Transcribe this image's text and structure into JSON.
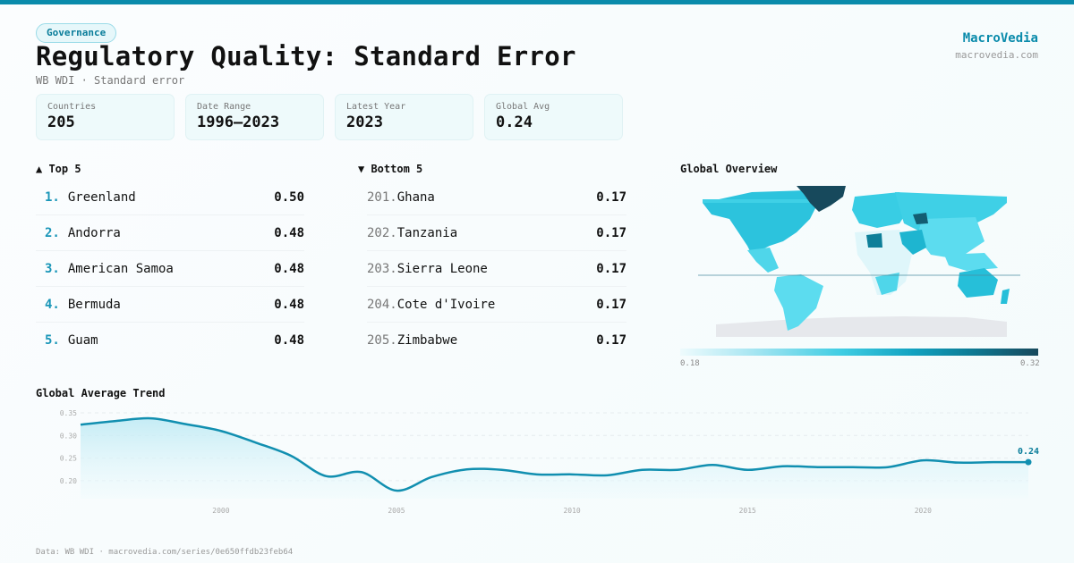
{
  "header": {
    "category_badge": "Governance",
    "title": "Regulatory Quality: Standard Error",
    "subtitle": "WB WDI · Standard error",
    "brand": "MacroVedia",
    "brand_url": "macrovedia.com"
  },
  "stats": [
    {
      "label": "Countries",
      "value": "205"
    },
    {
      "label": "Date Range",
      "value": "1996–2023"
    },
    {
      "label": "Latest Year",
      "value": "2023"
    },
    {
      "label": "Global Avg",
      "value": "0.24"
    }
  ],
  "top5": {
    "title": "▲ Top 5",
    "items": [
      {
        "rank": "1.",
        "country": "Greenland",
        "value": "0.50"
      },
      {
        "rank": "2.",
        "country": "Andorra",
        "value": "0.48"
      },
      {
        "rank": "3.",
        "country": "American Samoa",
        "value": "0.48"
      },
      {
        "rank": "4.",
        "country": "Bermuda",
        "value": "0.48"
      },
      {
        "rank": "5.",
        "country": "Guam",
        "value": "0.48"
      }
    ]
  },
  "bottom5": {
    "title": "▼ Bottom 5",
    "items": [
      {
        "rank": "201.",
        "country": "Ghana",
        "value": "0.17"
      },
      {
        "rank": "202.",
        "country": "Tanzania",
        "value": "0.17"
      },
      {
        "rank": "203.",
        "country": "Sierra Leone",
        "value": "0.17"
      },
      {
        "rank": "204.",
        "country": "Cote d'Ivoire",
        "value": "0.17"
      },
      {
        "rank": "205.",
        "country": "Zimbabwe",
        "value": "0.17"
      }
    ]
  },
  "map": {
    "title": "Global Overview",
    "legend_min": "0.18",
    "legend_max": "0.32"
  },
  "trend": {
    "title": "Global Average Trend",
    "last_label": "0.24"
  },
  "footer": "Data: WB WDI · macrovedia.com/series/0e650ffdb23feb64",
  "colors": {
    "accent": "#0a8bab",
    "line": "#118fb0",
    "map_dark": "#17495c",
    "map_mid": "#29c3de",
    "map_light": "#a8e6f2"
  },
  "chart_data": {
    "type": "area",
    "title": "Global Average Trend",
    "xlabel": "",
    "ylabel": "",
    "x": [
      1996,
      1997,
      1998,
      1999,
      2000,
      2001,
      2002,
      2003,
      2004,
      2005,
      2006,
      2007,
      2008,
      2009,
      2010,
      2011,
      2012,
      2013,
      2014,
      2015,
      2016,
      2017,
      2018,
      2019,
      2020,
      2021,
      2022,
      2023
    ],
    "values": [
      0.324,
      0.332,
      0.338,
      0.325,
      0.31,
      0.284,
      0.255,
      0.21,
      0.219,
      0.178,
      0.208,
      0.225,
      0.224,
      0.214,
      0.214,
      0.212,
      0.224,
      0.224,
      0.235,
      0.224,
      0.232,
      0.23,
      0.23,
      0.23,
      0.245,
      0.24,
      0.241,
      0.241
    ],
    "yticks": [
      0.2,
      0.25,
      0.3,
      0.35
    ],
    "xticks": [
      2000,
      2005,
      2010,
      2015,
      2020
    ],
    "ylim": [
      0.165,
      0.36
    ],
    "grid": true,
    "last_point_label": "0.24"
  }
}
